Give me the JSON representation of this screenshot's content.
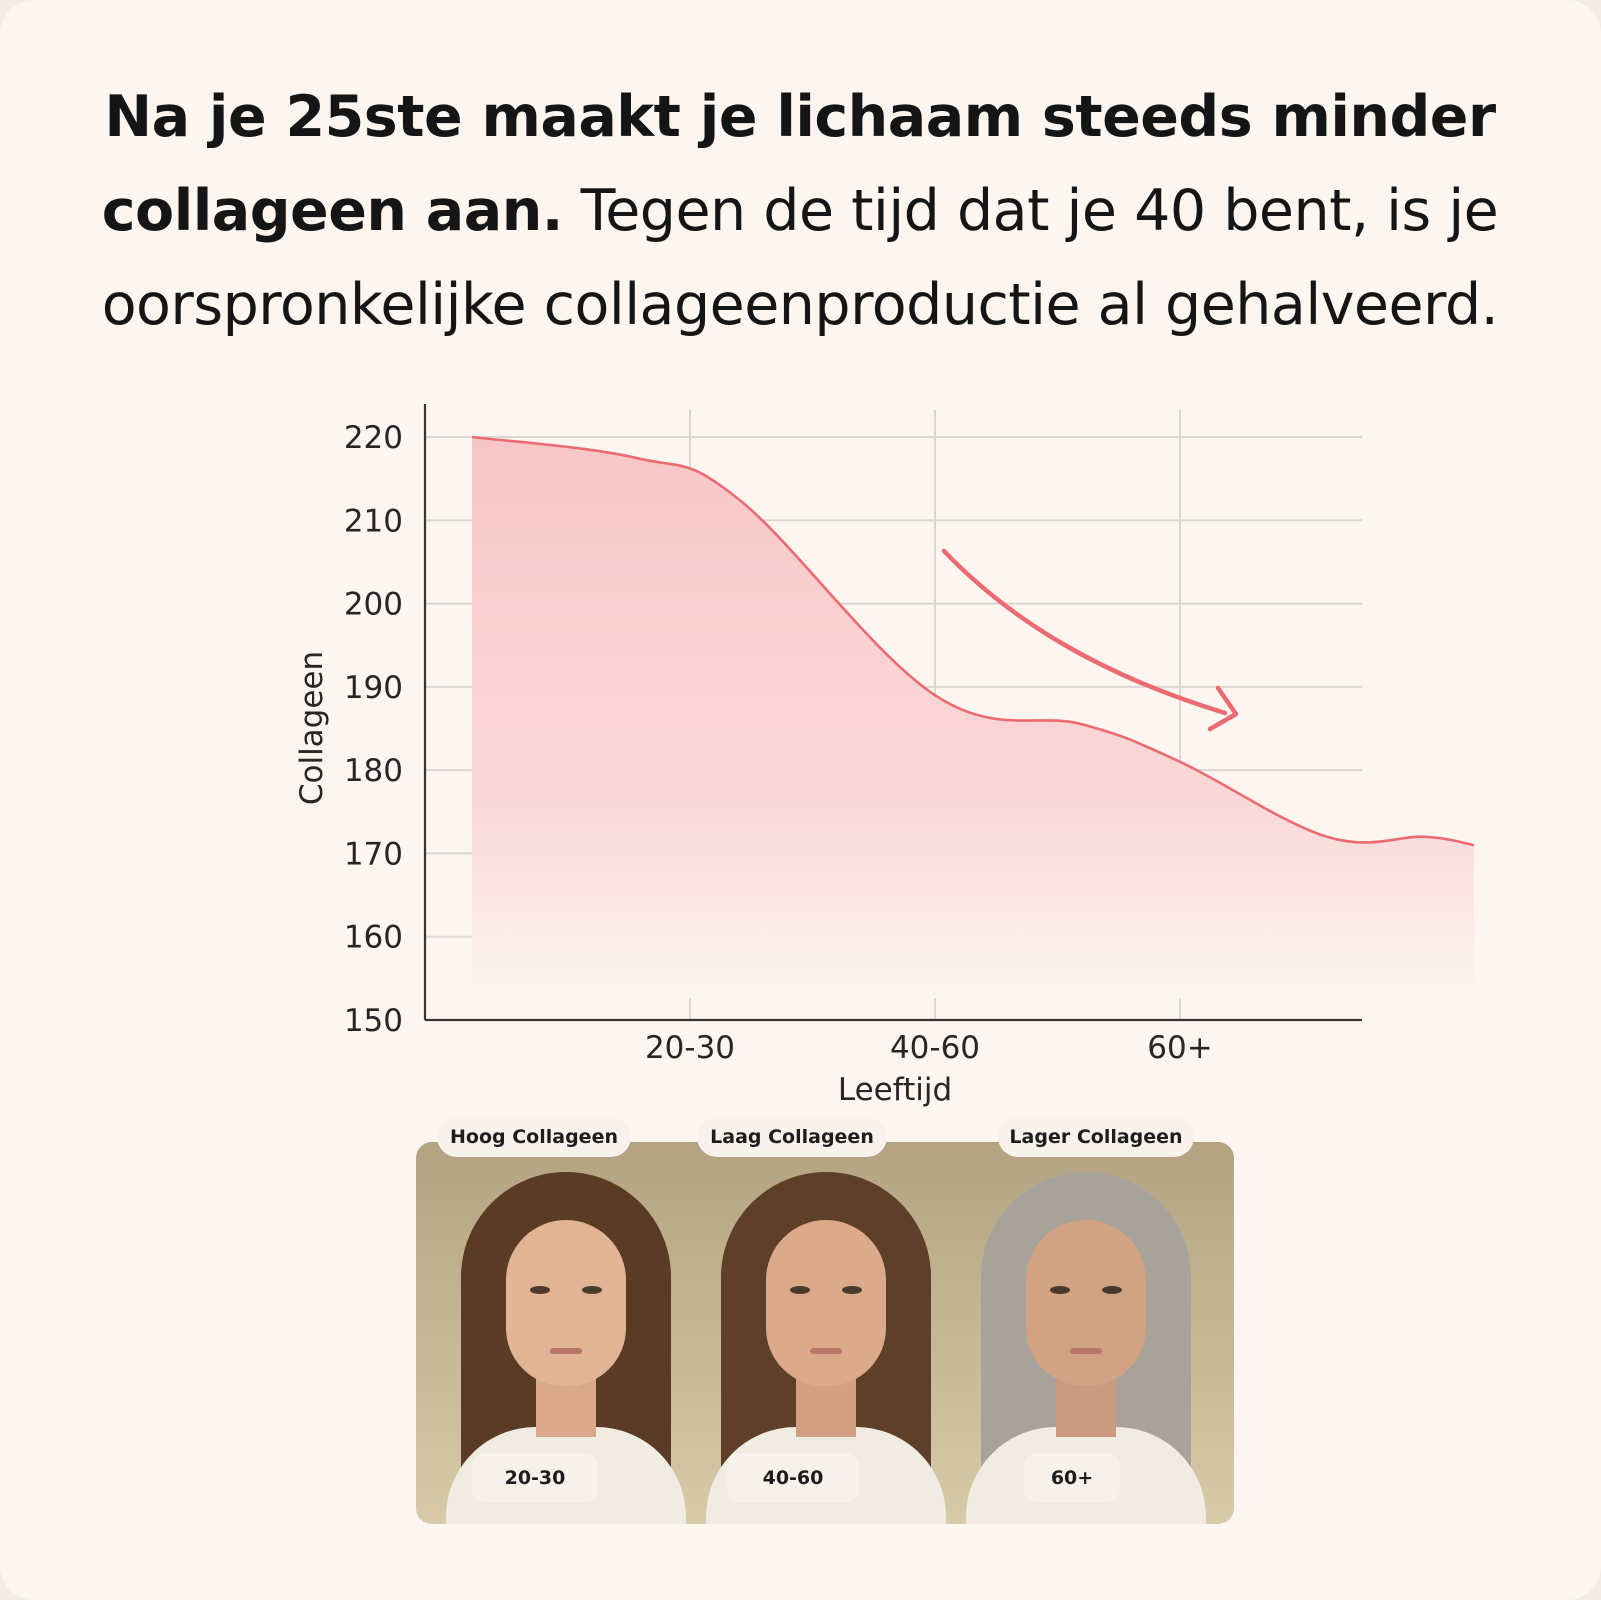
{
  "headline": {
    "bold_line": "Na je 25ste maakt je lichaam steeds minder collageen aan.",
    "regular_text": "Tegen de tijd dat je 40 bent, is je oorspronkelijke collageenproductie al gehalveerd."
  },
  "chart_data": {
    "type": "area",
    "xlabel": "Leeftijd",
    "ylabel": "Collageen",
    "ylim": [
      150,
      220
    ],
    "yticks": [
      150,
      160,
      170,
      180,
      190,
      200,
      210,
      220
    ],
    "categories": [
      "20-30",
      "40-60",
      "60+"
    ],
    "x": [
      0,
      0.75,
      1.2,
      2.0,
      2.6,
      3.0,
      3.6,
      4.0,
      4.2
    ],
    "x_meaning": "position along the age axis where 1 = 20-30, 2 = 40-60, 3 = 60+",
    "series": [
      {
        "values": [
          220,
          217.5,
          212.5,
          189,
          185.5,
          181,
          172,
          172,
          171
        ]
      }
    ],
    "grid": true,
    "annotation": "downward arrow",
    "colors": {
      "line": "#ec6b73",
      "fill_top": "#f8c7c9",
      "fill_bottom": "#fdf3ef",
      "grid": "#dcd7d4",
      "axis": "#3a3434"
    }
  },
  "photos": [
    {
      "top_label": "Hoog Collageen",
      "age_label": "20-30"
    },
    {
      "top_label": "Laag Collageen",
      "age_label": "40-60"
    },
    {
      "top_label": "Lager Collageen",
      "age_label": "60+"
    }
  ]
}
